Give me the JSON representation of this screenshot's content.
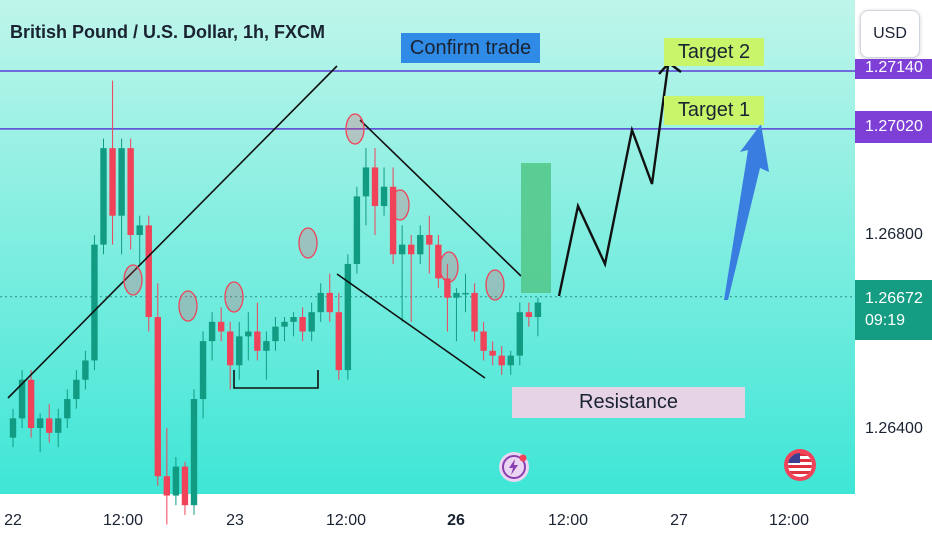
{
  "header": {
    "title": "British Pound / U.S. Dollar, 1h, FXCM",
    "currency_button": "USD"
  },
  "annotations": {
    "confirm_trade": "Confirm trade",
    "target_2": "Target 2",
    "target_1": "Target 1",
    "resistance": "Resistance"
  },
  "price_tags": {
    "target2_level": "1.27140",
    "target1_level": "1.27020",
    "current_price": "1.26672",
    "countdown": "09:19"
  },
  "colors": {
    "up": "#119b83",
    "down": "#f0435a",
    "level_line": "#5a40d6",
    "level_tag": "#7e3fd6",
    "current_tag": "#149d82",
    "background_top": "#bff5ea",
    "background_bottom": "#3ee6d6"
  },
  "chart_data": {
    "type": "candlestick",
    "instrument": "British Pound / U.S. Dollar, 1h, FXCM",
    "x_tick_labels": [
      "22",
      "12:00",
      "23",
      "12:00",
      "26",
      "12:00",
      "27",
      "12:00"
    ],
    "y_tick_labels": [
      "1.26800",
      "1.26400"
    ],
    "ylim": [
      1.2625,
      1.2725
    ],
    "horizontal_levels": [
      1.2714,
      1.2702
    ],
    "current_price": 1.26672,
    "candles": [
      [
        1.2638,
        1.2644,
        1.2636,
        1.2642
      ],
      [
        1.2642,
        1.2652,
        1.264,
        1.265
      ],
      [
        1.265,
        1.2652,
        1.2638,
        1.264
      ],
      [
        1.264,
        1.2643,
        1.2635,
        1.2642
      ],
      [
        1.2642,
        1.2645,
        1.2637,
        1.2639
      ],
      [
        1.2639,
        1.2644,
        1.2636,
        1.2642
      ],
      [
        1.2642,
        1.2648,
        1.264,
        1.2646
      ],
      [
        1.2646,
        1.2652,
        1.2644,
        1.265
      ],
      [
        1.265,
        1.2656,
        1.2648,
        1.2654
      ],
      [
        1.2654,
        1.268,
        1.2652,
        1.2678
      ],
      [
        1.2678,
        1.27,
        1.2676,
        1.2698
      ],
      [
        1.2698,
        1.2712,
        1.2678,
        1.2684
      ],
      [
        1.2684,
        1.27,
        1.2676,
        1.2698
      ],
      [
        1.2698,
        1.27,
        1.2677,
        1.268
      ],
      [
        1.268,
        1.2684,
        1.2674,
        1.2682
      ],
      [
        1.2682,
        1.2684,
        1.266,
        1.2663
      ],
      [
        1.2663,
        1.267,
        1.2628,
        1.263
      ],
      [
        1.263,
        1.264,
        1.262,
        1.2626
      ],
      [
        1.2626,
        1.2634,
        1.2624,
        1.2632
      ],
      [
        1.2632,
        1.2633,
        1.2622,
        1.2624
      ],
      [
        1.2624,
        1.2648,
        1.2622,
        1.2646
      ],
      [
        1.2646,
        1.266,
        1.2642,
        1.2658
      ],
      [
        1.2658,
        1.2664,
        1.2654,
        1.2662
      ],
      [
        1.2662,
        1.2665,
        1.2658,
        1.266
      ],
      [
        1.266,
        1.2662,
        1.2648,
        1.2653
      ],
      [
        1.2653,
        1.2662,
        1.265,
        1.2659
      ],
      [
        1.2659,
        1.2664,
        1.2654,
        1.266
      ],
      [
        1.266,
        1.2666,
        1.2654,
        1.2656
      ],
      [
        1.2656,
        1.266,
        1.265,
        1.2658
      ],
      [
        1.2658,
        1.2663,
        1.2656,
        1.2661
      ],
      [
        1.2661,
        1.2663,
        1.2658,
        1.2662
      ],
      [
        1.2662,
        1.2664,
        1.2659,
        1.2663
      ],
      [
        1.2663,
        1.2665,
        1.2658,
        1.266
      ],
      [
        1.266,
        1.2666,
        1.2658,
        1.2664
      ],
      [
        1.2664,
        1.267,
        1.2662,
        1.2668
      ],
      [
        1.2668,
        1.2672,
        1.2662,
        1.2664
      ],
      [
        1.2664,
        1.2668,
        1.265,
        1.2652
      ],
      [
        1.2652,
        1.2676,
        1.265,
        1.2674
      ],
      [
        1.2674,
        1.269,
        1.2672,
        1.2688
      ],
      [
        1.2688,
        1.2698,
        1.2682,
        1.2694
      ],
      [
        1.2694,
        1.2698,
        1.268,
        1.2686
      ],
      [
        1.2686,
        1.2694,
        1.2684,
        1.269
      ],
      [
        1.269,
        1.2694,
        1.2674,
        1.2676
      ],
      [
        1.2676,
        1.2682,
        1.2662,
        1.2678
      ],
      [
        1.2678,
        1.268,
        1.2662,
        1.2676
      ],
      [
        1.2676,
        1.2682,
        1.2674,
        1.268
      ],
      [
        1.268,
        1.2684,
        1.2672,
        1.2678
      ],
      [
        1.2678,
        1.268,
        1.2669,
        1.2671
      ],
      [
        1.2671,
        1.2674,
        1.266,
        1.2667
      ],
      [
        1.2667,
        1.2669,
        1.2658,
        1.2668
      ],
      [
        1.2668,
        1.2672,
        1.2664,
        1.2668
      ],
      [
        1.2668,
        1.267,
        1.2658,
        1.266
      ],
      [
        1.266,
        1.2662,
        1.2654,
        1.2656
      ],
      [
        1.2656,
        1.2658,
        1.2653,
        1.2655
      ],
      [
        1.2655,
        1.2657,
        1.2651,
        1.2653
      ],
      [
        1.2653,
        1.2656,
        1.2651,
        1.2655
      ],
      [
        1.2655,
        1.2666,
        1.2653,
        1.2664
      ],
      [
        1.2664,
        1.2666,
        1.2661,
        1.2663
      ],
      [
        1.2663,
        1.2667,
        1.2659,
        1.2666
      ]
    ]
  }
}
